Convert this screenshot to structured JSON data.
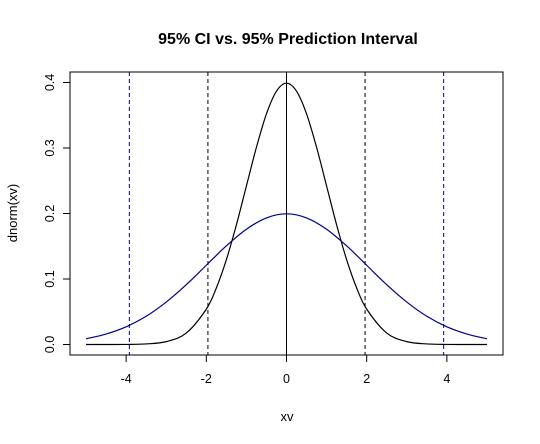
{
  "chart_data": {
    "type": "line",
    "title": "95% CI vs. 95% Prediction Interval",
    "xlabel": "xv",
    "ylabel": "dnorm(xv)",
    "xlim": [
      -5.4,
      5.4
    ],
    "ylim": [
      -0.016,
      0.416
    ],
    "x_ticks": [
      -4,
      -2,
      0,
      2,
      4
    ],
    "x_tick_labels": [
      "-4",
      "-2",
      "0",
      "2",
      "4"
    ],
    "y_ticks": [
      0.0,
      0.1,
      0.2,
      0.3,
      0.4
    ],
    "y_tick_labels": [
      "0.0",
      "0.1",
      "0.2",
      "0.3",
      "0.4"
    ],
    "grid": false,
    "series": [
      {
        "color": "#000000",
        "x": [
          -5.0,
          -4.5,
          -4.0,
          -3.5,
          -3.0,
          -2.5,
          -2.0,
          -1.75,
          -1.5,
          -1.25,
          -1.0,
          -0.75,
          -0.5,
          -0.25,
          0.0,
          0.25,
          0.5,
          0.75,
          1.0,
          1.25,
          1.5,
          1.75,
          2.0,
          2.5,
          3.0,
          3.5,
          4.0,
          4.5,
          5.0
        ],
        "y": [
          0.0,
          0.0,
          0.0001,
          0.0009,
          0.0044,
          0.0175,
          0.054,
          0.0863,
          0.1295,
          0.1826,
          0.242,
          0.3011,
          0.3521,
          0.3867,
          0.3989,
          0.3867,
          0.3521,
          0.3011,
          0.242,
          0.1826,
          0.1295,
          0.0863,
          0.054,
          0.0175,
          0.0044,
          0.0009,
          0.0001,
          0.0,
          0.0
        ]
      },
      {
        "color": "#00008b",
        "x": [
          -5.0,
          -4.5,
          -4.0,
          -3.5,
          -3.0,
          -2.5,
          -2.0,
          -1.5,
          -1.0,
          -0.5,
          0.0,
          0.5,
          1.0,
          1.5,
          2.0,
          2.5,
          3.0,
          3.5,
          4.0,
          4.5,
          5.0
        ],
        "y": [
          0.0088,
          0.016,
          0.027,
          0.0431,
          0.0648,
          0.0913,
          0.121,
          0.1506,
          0.176,
          0.1933,
          0.1995,
          0.1933,
          0.176,
          0.1506,
          0.121,
          0.0913,
          0.0648,
          0.0431,
          0.027,
          0.016,
          0.0088
        ]
      }
    ],
    "vlines": [
      {
        "x": 0,
        "color": "#000000",
        "style": "solid"
      },
      {
        "x": -1.96,
        "color": "#000000",
        "style": "dashed"
      },
      {
        "x": 1.96,
        "color": "#000000",
        "style": "dashed"
      },
      {
        "x": -3.92,
        "color": "#00008b",
        "style": "dashed"
      },
      {
        "x": 3.92,
        "color": "#00008b",
        "style": "dashed"
      }
    ]
  }
}
